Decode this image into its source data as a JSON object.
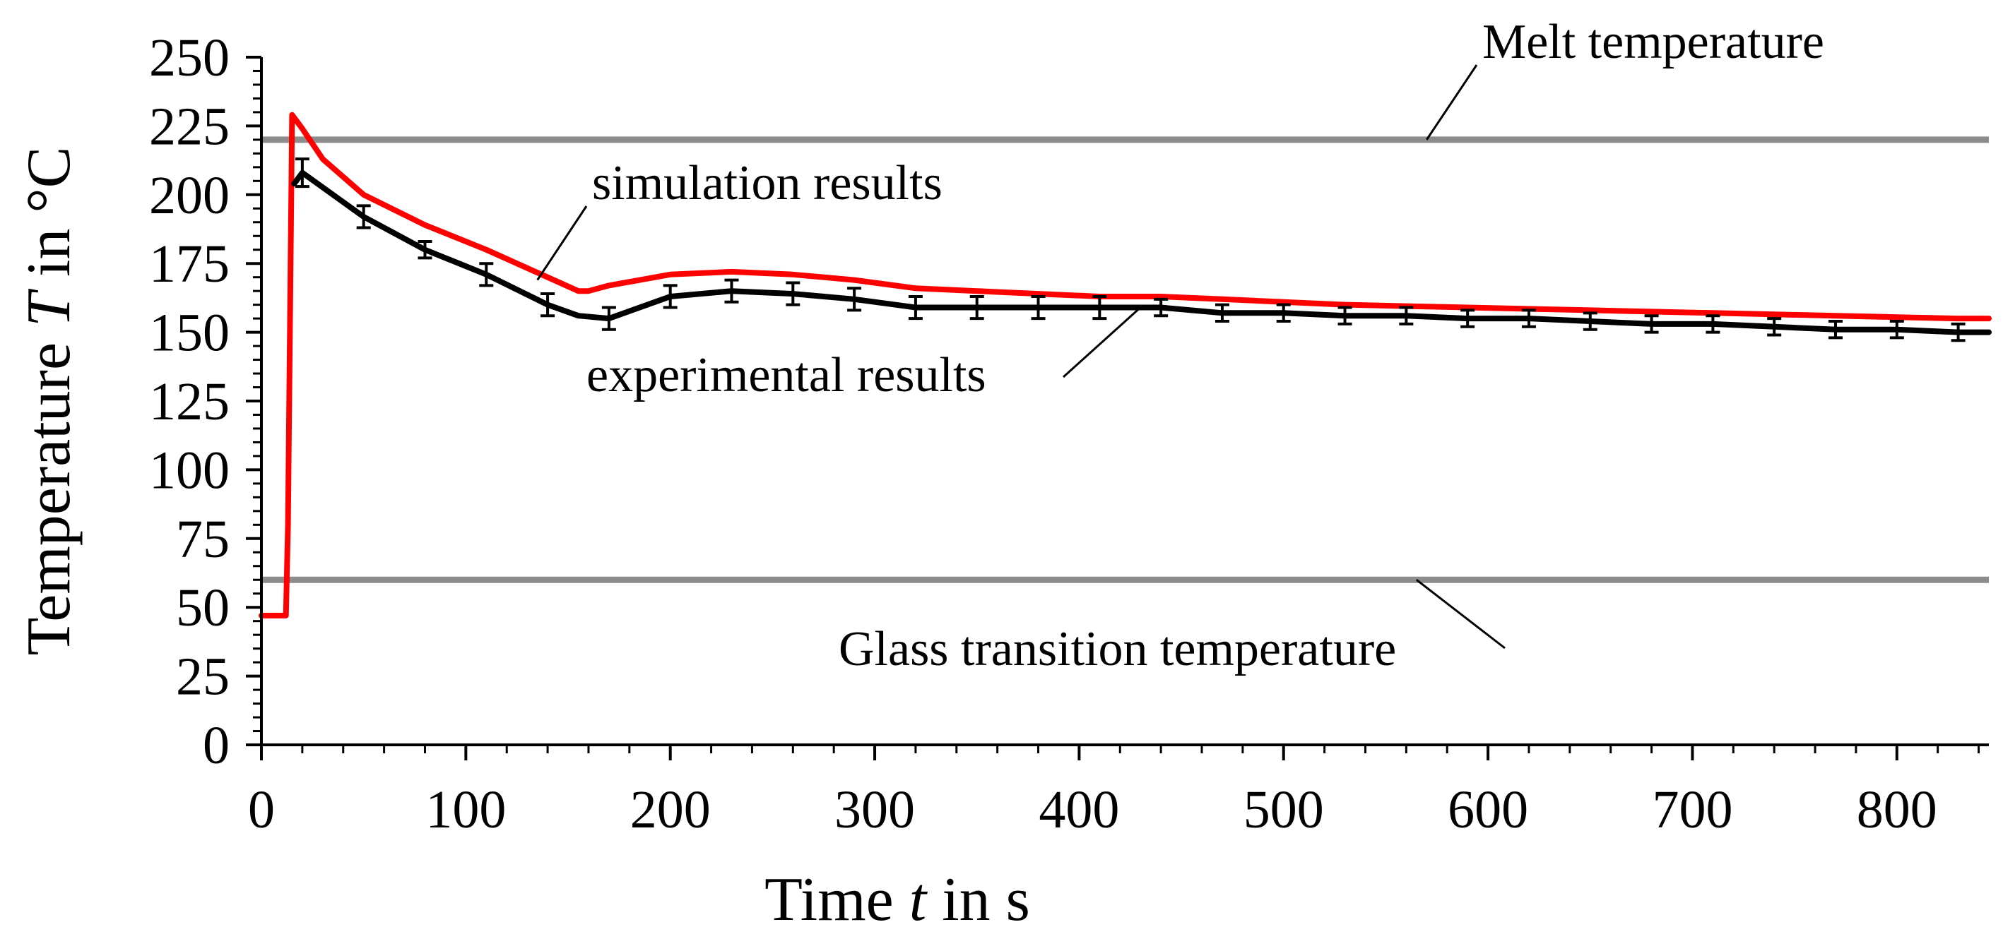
{
  "chart_data": {
    "type": "line",
    "title": "",
    "xlabel_prefix": "Time ",
    "xlabel_var": "t",
    "xlabel_suffix": " in s",
    "ylabel_prefix": "Temperature ",
    "ylabel_var": "T",
    "ylabel_suffix": " in °C",
    "xlim": [
      0,
      845
    ],
    "ylim": [
      0,
      250
    ],
    "xticks": [
      0,
      100,
      200,
      300,
      400,
      500,
      600,
      700,
      800
    ],
    "xtick_labels": [
      "0",
      "100",
      "200",
      "300",
      "400",
      "500",
      "600",
      "700",
      "800"
    ],
    "yticks": [
      0,
      25,
      50,
      75,
      100,
      125,
      150,
      175,
      200,
      225,
      250
    ],
    "ytick_labels": [
      "0",
      "25",
      "50",
      "75",
      "100",
      "125",
      "150",
      "175",
      "200",
      "225",
      "250"
    ],
    "grid": false,
    "reference_lines": [
      {
        "name": "Melt temperature",
        "y": 220,
        "color": "#8c8c8c"
      },
      {
        "name": "Glass transition temperature",
        "y": 60,
        "color": "#8c8c8c"
      }
    ],
    "series": [
      {
        "name": "simulation results",
        "color": "#ff0000",
        "x": [
          0,
          12,
          13,
          15,
          20,
          30,
          50,
          80,
          110,
          140,
          155,
          160,
          170,
          200,
          230,
          260,
          290,
          320,
          350,
          380,
          410,
          440,
          470,
          500,
          530,
          560,
          590,
          620,
          650,
          680,
          710,
          740,
          770,
          800,
          830,
          845
        ],
        "y": [
          47,
          47,
          80,
          229,
          224,
          213,
          200,
          189,
          180,
          170,
          165,
          165,
          167,
          171,
          172,
          171,
          169,
          166,
          165,
          164,
          163,
          163,
          162,
          161,
          160,
          159.5,
          159,
          158.5,
          158,
          157.5,
          157,
          156.5,
          156,
          155.5,
          155,
          155
        ]
      },
      {
        "name": "experimental results",
        "color": "#000000",
        "x": [
          16,
          20,
          50,
          80,
          110,
          140,
          155,
          170,
          200,
          230,
          260,
          290,
          320,
          350,
          380,
          410,
          440,
          470,
          500,
          530,
          560,
          590,
          620,
          650,
          680,
          710,
          740,
          770,
          800,
          830,
          845
        ],
        "y": [
          204,
          208,
          192,
          180,
          171,
          160,
          156,
          155,
          163,
          165,
          164,
          162,
          159,
          159,
          159,
          159,
          159,
          157,
          157,
          156,
          156,
          155,
          155,
          154,
          153,
          153,
          152,
          151,
          151,
          150,
          150
        ],
        "error_x": [
          20,
          50,
          80,
          110,
          140,
          170,
          200,
          230,
          260,
          290,
          320,
          350,
          380,
          410,
          440,
          470,
          500,
          530,
          560,
          590,
          620,
          650,
          680,
          710,
          740,
          770,
          800,
          830
        ],
        "error_y": [
          208,
          192,
          180,
          171,
          160,
          155,
          163,
          165,
          164,
          162,
          159,
          159,
          159,
          159,
          159,
          157,
          157,
          156,
          156,
          155,
          155,
          154,
          153,
          153,
          152,
          151,
          151,
          150
        ],
        "error_sd": [
          5,
          4,
          3,
          4,
          4,
          4,
          4,
          4,
          4,
          4,
          4,
          4,
          4,
          4,
          3,
          3,
          3,
          3,
          3,
          3,
          3,
          3,
          3,
          3,
          3,
          3,
          3,
          3
        ]
      }
    ],
    "annotations": [
      {
        "text": "Melt temperature",
        "target_x": 570,
        "target_y": 220
      },
      {
        "text": "simulation results",
        "target_x": 135,
        "target_y": 169
      },
      {
        "text": "experimental results",
        "target_x": 430,
        "target_y": 159
      },
      {
        "text": "Glass transition temperature",
        "target_x": 565,
        "target_y": 60
      }
    ]
  }
}
